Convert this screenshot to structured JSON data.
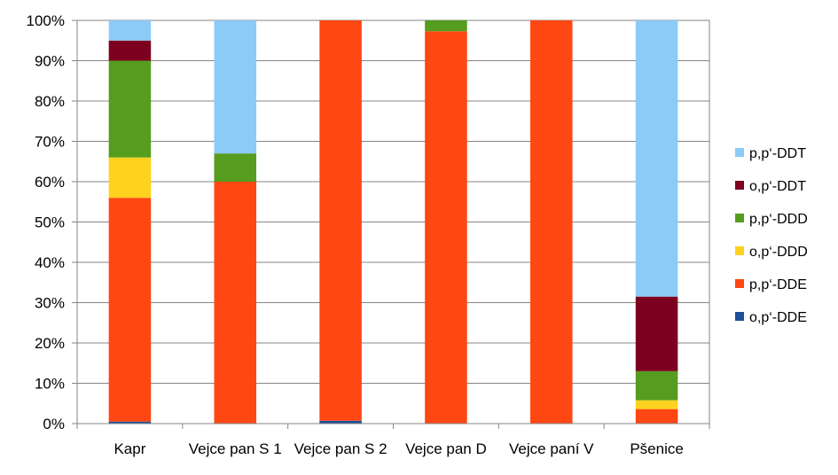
{
  "chart_data": {
    "type": "bar",
    "stacked": true,
    "percent_stacked": true,
    "categories": [
      "Kapr",
      "Vejce pan S 1",
      "Vejce pan S 2",
      "Vejce pan D",
      "Vejce paní V",
      "Pšenice"
    ],
    "series": [
      {
        "name": "o,p‘-DDE",
        "color": "#1f4e9a",
        "values": [
          0.5,
          0,
          0.7,
          0,
          0,
          0
        ]
      },
      {
        "name": "p,p‘-DDE",
        "color": "#ff4713",
        "values": [
          55.5,
          60,
          99.3,
          97.3,
          100,
          3.6
        ]
      },
      {
        "name": "o,p‘-DDD",
        "color": "#ffd21f",
        "values": [
          10,
          0,
          0,
          0,
          0,
          2.2
        ]
      },
      {
        "name": "p,p‘-DDD",
        "color": "#569c1f",
        "values": [
          24,
          7,
          0,
          2.7,
          0,
          7.2
        ]
      },
      {
        "name": "o,p‘-DDT",
        "color": "#7e0021",
        "values": [
          5,
          0,
          0,
          0,
          0,
          18.5
        ]
      },
      {
        "name": "p,p‘-DDT",
        "color": "#8ccbf7",
        "values": [
          5,
          33,
          0,
          0,
          0,
          68.5
        ]
      }
    ],
    "yticks": [
      "0%",
      "10%",
      "20%",
      "30%",
      "40%",
      "50%",
      "60%",
      "70%",
      "80%",
      "90%",
      "100%"
    ],
    "ylim": [
      0,
      100
    ],
    "grid": true,
    "legend_position": "right",
    "title": "",
    "xlabel": "",
    "ylabel": ""
  }
}
